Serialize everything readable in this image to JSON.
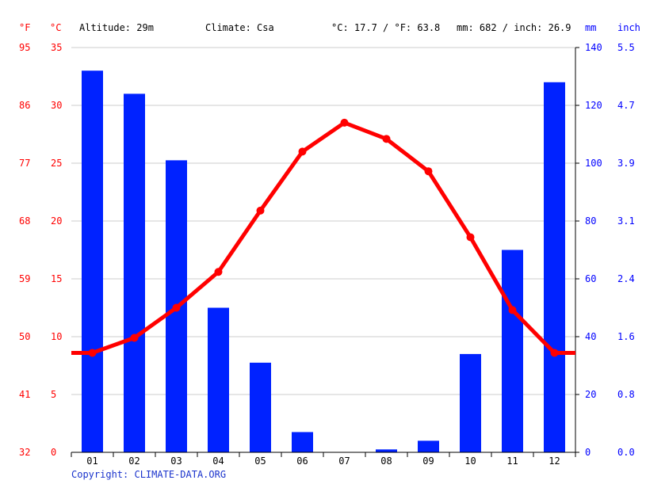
{
  "header": {
    "unit_f": "°F",
    "unit_c": "°C",
    "altitude": "Altitude: 29m",
    "climate": "Climate: Csa",
    "temp_avg": "°C: 17.7 / °F: 63.8",
    "precip_total": "mm: 682 / inch: 26.9",
    "unit_mm": "mm",
    "unit_inch": "inch"
  },
  "copyright": "Copyright: CLIMATE-DATA.ORG",
  "colors": {
    "temperature": "#ff0000",
    "precipitation": "#0022ff",
    "grid": "#cccccc",
    "axis_left": "#ff0000",
    "axis_right": "#0000ff",
    "copyright": "#1a33cc"
  },
  "chart_data": {
    "type": "bar",
    "categories": [
      "01",
      "02",
      "03",
      "04",
      "05",
      "06",
      "07",
      "08",
      "09",
      "10",
      "11",
      "12"
    ],
    "series": [
      {
        "type": "bar",
        "axis": "mm",
        "values": [
          132,
          124,
          101,
          50,
          31,
          7,
          0,
          1,
          4,
          34,
          70,
          128
        ]
      },
      {
        "type": "line",
        "axis": "°C",
        "values": [
          8.6,
          9.9,
          12.5,
          15.6,
          20.9,
          26.0,
          28.5,
          27.1,
          24.3,
          18.6,
          12.3,
          8.6
        ]
      }
    ],
    "axes": {
      "celsius": {
        "ticks": [
          0,
          5,
          10,
          15,
          20,
          25,
          30,
          35
        ],
        "range": [
          0,
          35
        ]
      },
      "fahrenheit": {
        "ticks": [
          32,
          41,
          50,
          59,
          68,
          77,
          86,
          95
        ]
      },
      "mm": {
        "ticks": [
          0,
          20,
          40,
          60,
          80,
          100,
          120,
          140
        ],
        "range": [
          0,
          140
        ]
      },
      "inch": {
        "ticks": [
          "0.0",
          "0.8",
          "1.6",
          "2.4",
          "3.1",
          "3.9",
          "4.7",
          "5.5"
        ]
      }
    },
    "grid": true
  }
}
